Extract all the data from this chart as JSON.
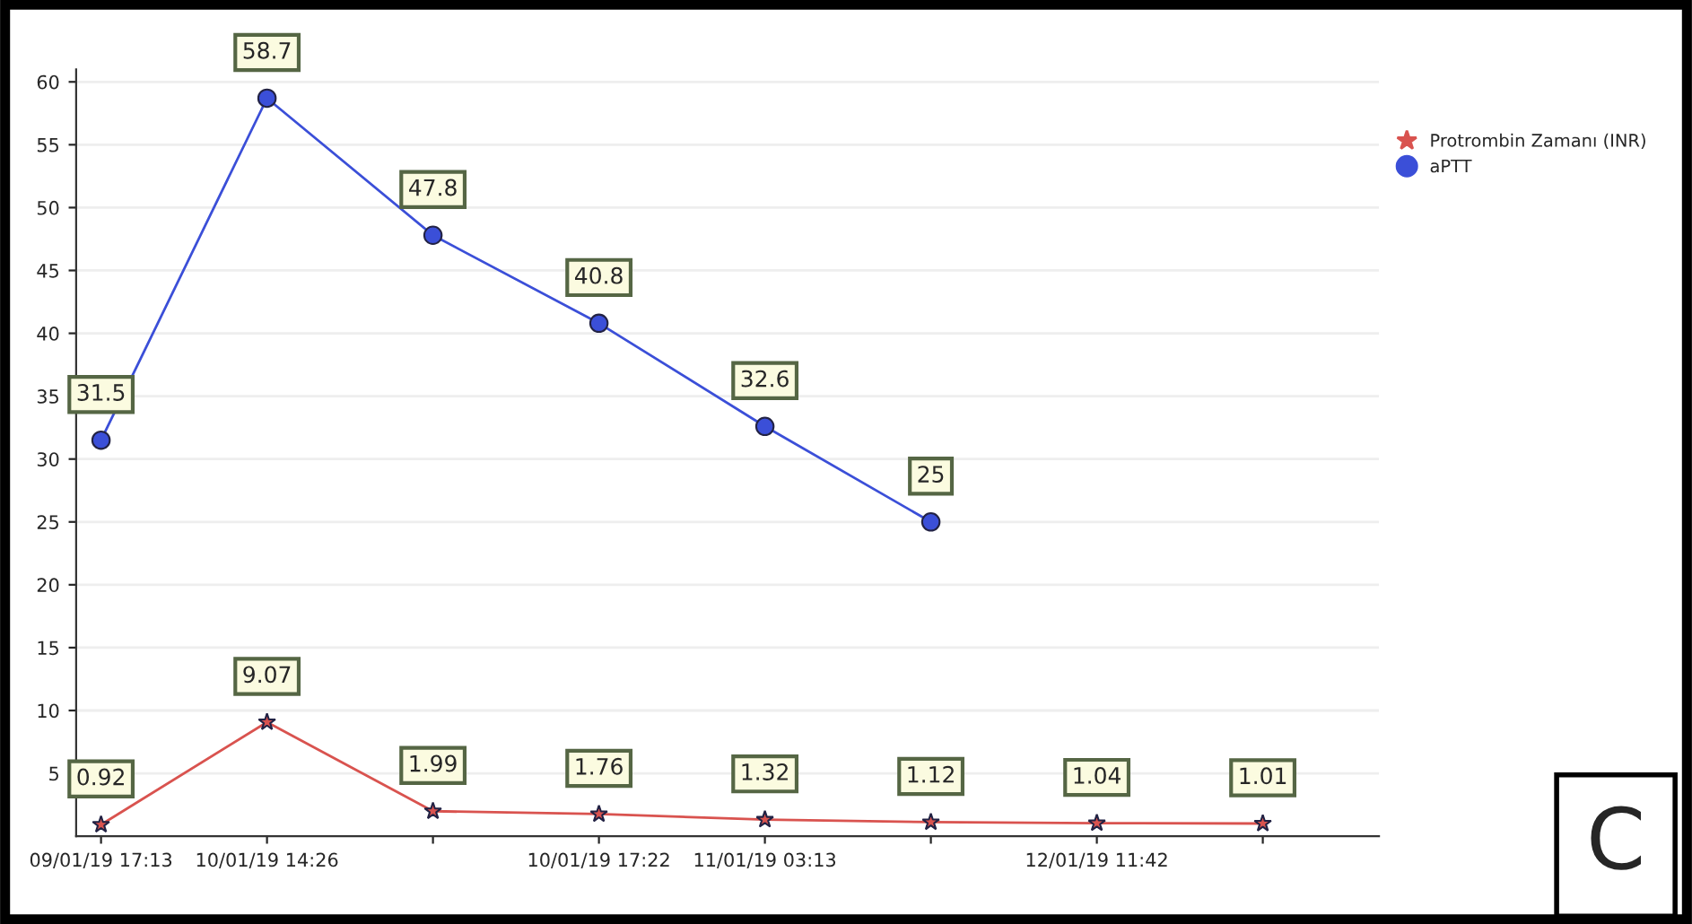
{
  "chart_data": {
    "type": "line",
    "categories": [
      "09/01/19 17:13",
      "10/01/19 14:26",
      null,
      "10/01/19 17:22",
      "11/01/19 03:13",
      null,
      "12/01/19 11:42",
      null
    ],
    "series": [
      {
        "name": "Protrombin Zamanı (INR)",
        "color": "#d9534f",
        "marker": "star",
        "values": [
          0.92,
          9.07,
          1.99,
          1.76,
          1.32,
          1.12,
          1.04,
          1.01
        ]
      },
      {
        "name": "aPTT",
        "color": "#3b4fd8",
        "marker": "circle",
        "values": [
          31.5,
          58.7,
          47.8,
          40.8,
          32.6,
          25,
          null,
          null
        ]
      }
    ],
    "ylim": [
      0,
      61
    ],
    "yticks": [
      5,
      10,
      15,
      20,
      25,
      30,
      35,
      40,
      45,
      50,
      55,
      60
    ],
    "grid": "y",
    "legend": "top right",
    "data_labels": true,
    "line_style": "solid",
    "annotations": [
      "C"
    ]
  }
}
